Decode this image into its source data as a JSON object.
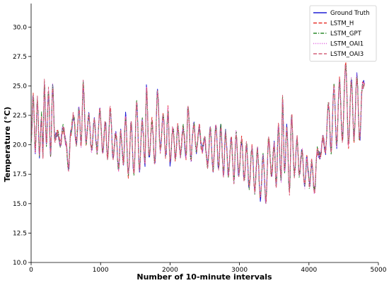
{
  "chart_data": {
    "type": "line",
    "xlabel": "Number of 10-minute intervals",
    "ylabel": "Temperature (°C)",
    "xlim": [
      0,
      5000
    ],
    "ylim": [
      10.0,
      32.0
    ],
    "x_ticks": [
      "0",
      "1000",
      "2000",
      "3000",
      "4000",
      "5000"
    ],
    "y_ticks": [
      "10.0",
      "12.5",
      "15.0",
      "17.5",
      "20.0",
      "22.5",
      "25.0",
      "27.5",
      "30.0"
    ],
    "x_tick_values": [
      0,
      1000,
      2000,
      3000,
      4000,
      5000
    ],
    "y_tick_values": [
      10.0,
      12.5,
      15.0,
      17.5,
      20.0,
      22.5,
      25.0,
      27.5,
      30.0
    ],
    "grid": false,
    "legend_position": "top-right",
    "series": [
      {
        "name": "Ground Truth",
        "color": "#1f1fd6",
        "dash": "solid"
      },
      {
        "name": "LSTM_H",
        "color": "#e8332b",
        "dash": "dashed"
      },
      {
        "name": "LSTM_GPT",
        "color": "#2a8a2a",
        "dash": "dashdot"
      },
      {
        "name": "LSTM_OAI1",
        "color": "#e36ee3",
        "dash": "dotted"
      },
      {
        "name": "LSTM_OAI3",
        "color": "#d4607a",
        "dash": "dashed"
      }
    ],
    "approx_points": [
      [
        0,
        20.5
      ],
      [
        30,
        24.2
      ],
      [
        60,
        19.5
      ],
      [
        90,
        23.8
      ],
      [
        120,
        19.2
      ],
      [
        150,
        22.5
      ],
      [
        170,
        19.0
      ],
      [
        190,
        25.4
      ],
      [
        220,
        20.0
      ],
      [
        250,
        24.6
      ],
      [
        280,
        19.2
      ],
      [
        310,
        25.0
      ],
      [
        340,
        20.5
      ],
      [
        380,
        21.0
      ],
      [
        420,
        20.0
      ],
      [
        460,
        21.5
      ],
      [
        500,
        20.2
      ],
      [
        540,
        18.0
      ],
      [
        570,
        21.0
      ],
      [
        610,
        22.5
      ],
      [
        650,
        20.2
      ],
      [
        690,
        23.0
      ],
      [
        720,
        20.0
      ],
      [
        750,
        25.2
      ],
      [
        790,
        20.2
      ],
      [
        830,
        22.5
      ],
      [
        870,
        19.5
      ],
      [
        910,
        22.0
      ],
      [
        950,
        19.5
      ],
      [
        990,
        23.0
      ],
      [
        1030,
        19.5
      ],
      [
        1070,
        21.8
      ],
      [
        1100,
        19.0
      ],
      [
        1140,
        23.0
      ],
      [
        1180,
        19.0
      ],
      [
        1220,
        21.0
      ],
      [
        1260,
        18.0
      ],
      [
        1290,
        21.0
      ],
      [
        1330,
        18.5
      ],
      [
        1360,
        22.5
      ],
      [
        1400,
        17.5
      ],
      [
        1440,
        21.8
      ],
      [
        1480,
        17.5
      ],
      [
        1520,
        23.5
      ],
      [
        1560,
        18.0
      ],
      [
        1600,
        22.0
      ],
      [
        1640,
        18.5
      ],
      [
        1660,
        24.8
      ],
      [
        1700,
        19.0
      ],
      [
        1740,
        22.0
      ],
      [
        1780,
        18.5
      ],
      [
        1820,
        24.5
      ],
      [
        1860,
        19.5
      ],
      [
        1900,
        22.5
      ],
      [
        1940,
        19.0
      ],
      [
        1970,
        23.0
      ],
      [
        2000,
        18.5
      ],
      [
        2040,
        21.5
      ],
      [
        2080,
        18.8
      ],
      [
        2110,
        21.5
      ],
      [
        2150,
        19.2
      ],
      [
        2190,
        21.5
      ],
      [
        2230,
        19.0
      ],
      [
        2260,
        23.2
      ],
      [
        2300,
        18.8
      ],
      [
        2340,
        21.8
      ],
      [
        2380,
        19.5
      ],
      [
        2420,
        21.5
      ],
      [
        2460,
        19.5
      ],
      [
        2500,
        20.5
      ],
      [
        2540,
        18.2
      ],
      [
        2580,
        21.2
      ],
      [
        2620,
        18.0
      ],
      [
        2660,
        21.5
      ],
      [
        2700,
        18.0
      ],
      [
        2730,
        21.5
      ],
      [
        2770,
        17.5
      ],
      [
        2800,
        21.0
      ],
      [
        2840,
        17.5
      ],
      [
        2880,
        20.5
      ],
      [
        2920,
        17.0
      ],
      [
        2950,
        21.0
      ],
      [
        2990,
        17.5
      ],
      [
        3030,
        20.5
      ],
      [
        3070,
        17.0
      ],
      [
        3100,
        20.0
      ],
      [
        3140,
        16.5
      ],
      [
        3180,
        19.8
      ],
      [
        3220,
        16.0
      ],
      [
        3260,
        19.5
      ],
      [
        3300,
        15.5
      ],
      [
        3340,
        19.0
      ],
      [
        3380,
        15.3
      ],
      [
        3420,
        20.5
      ],
      [
        3460,
        17.5
      ],
      [
        3500,
        20.0
      ],
      [
        3530,
        16.5
      ],
      [
        3560,
        21.5
      ],
      [
        3600,
        17.0
      ],
      [
        3620,
        24.0
      ],
      [
        3650,
        17.5
      ],
      [
        3680,
        21.5
      ],
      [
        3720,
        16.0
      ],
      [
        3750,
        22.5
      ],
      [
        3790,
        17.5
      ],
      [
        3830,
        20.5
      ],
      [
        3860,
        17.5
      ],
      [
        3900,
        19.5
      ],
      [
        3940,
        16.5
      ],
      [
        3970,
        18.8
      ],
      [
        4010,
        16.5
      ],
      [
        4040,
        18.5
      ],
      [
        4080,
        16.0
      ],
      [
        4120,
        19.5
      ],
      [
        4160,
        19.0
      ],
      [
        4200,
        20.5
      ],
      [
        4240,
        19.5
      ],
      [
        4280,
        23.5
      ],
      [
        4320,
        19.5
      ],
      [
        4360,
        25.0
      ],
      [
        4400,
        20.0
      ],
      [
        4440,
        25.5
      ],
      [
        4480,
        20.5
      ],
      [
        4530,
        26.8
      ],
      [
        4570,
        20.0
      ],
      [
        4610,
        25.5
      ],
      [
        4650,
        20.5
      ],
      [
        4690,
        25.8
      ],
      [
        4730,
        20.5
      ],
      [
        4770,
        25.0
      ],
      [
        4800,
        25.2
      ]
    ]
  }
}
